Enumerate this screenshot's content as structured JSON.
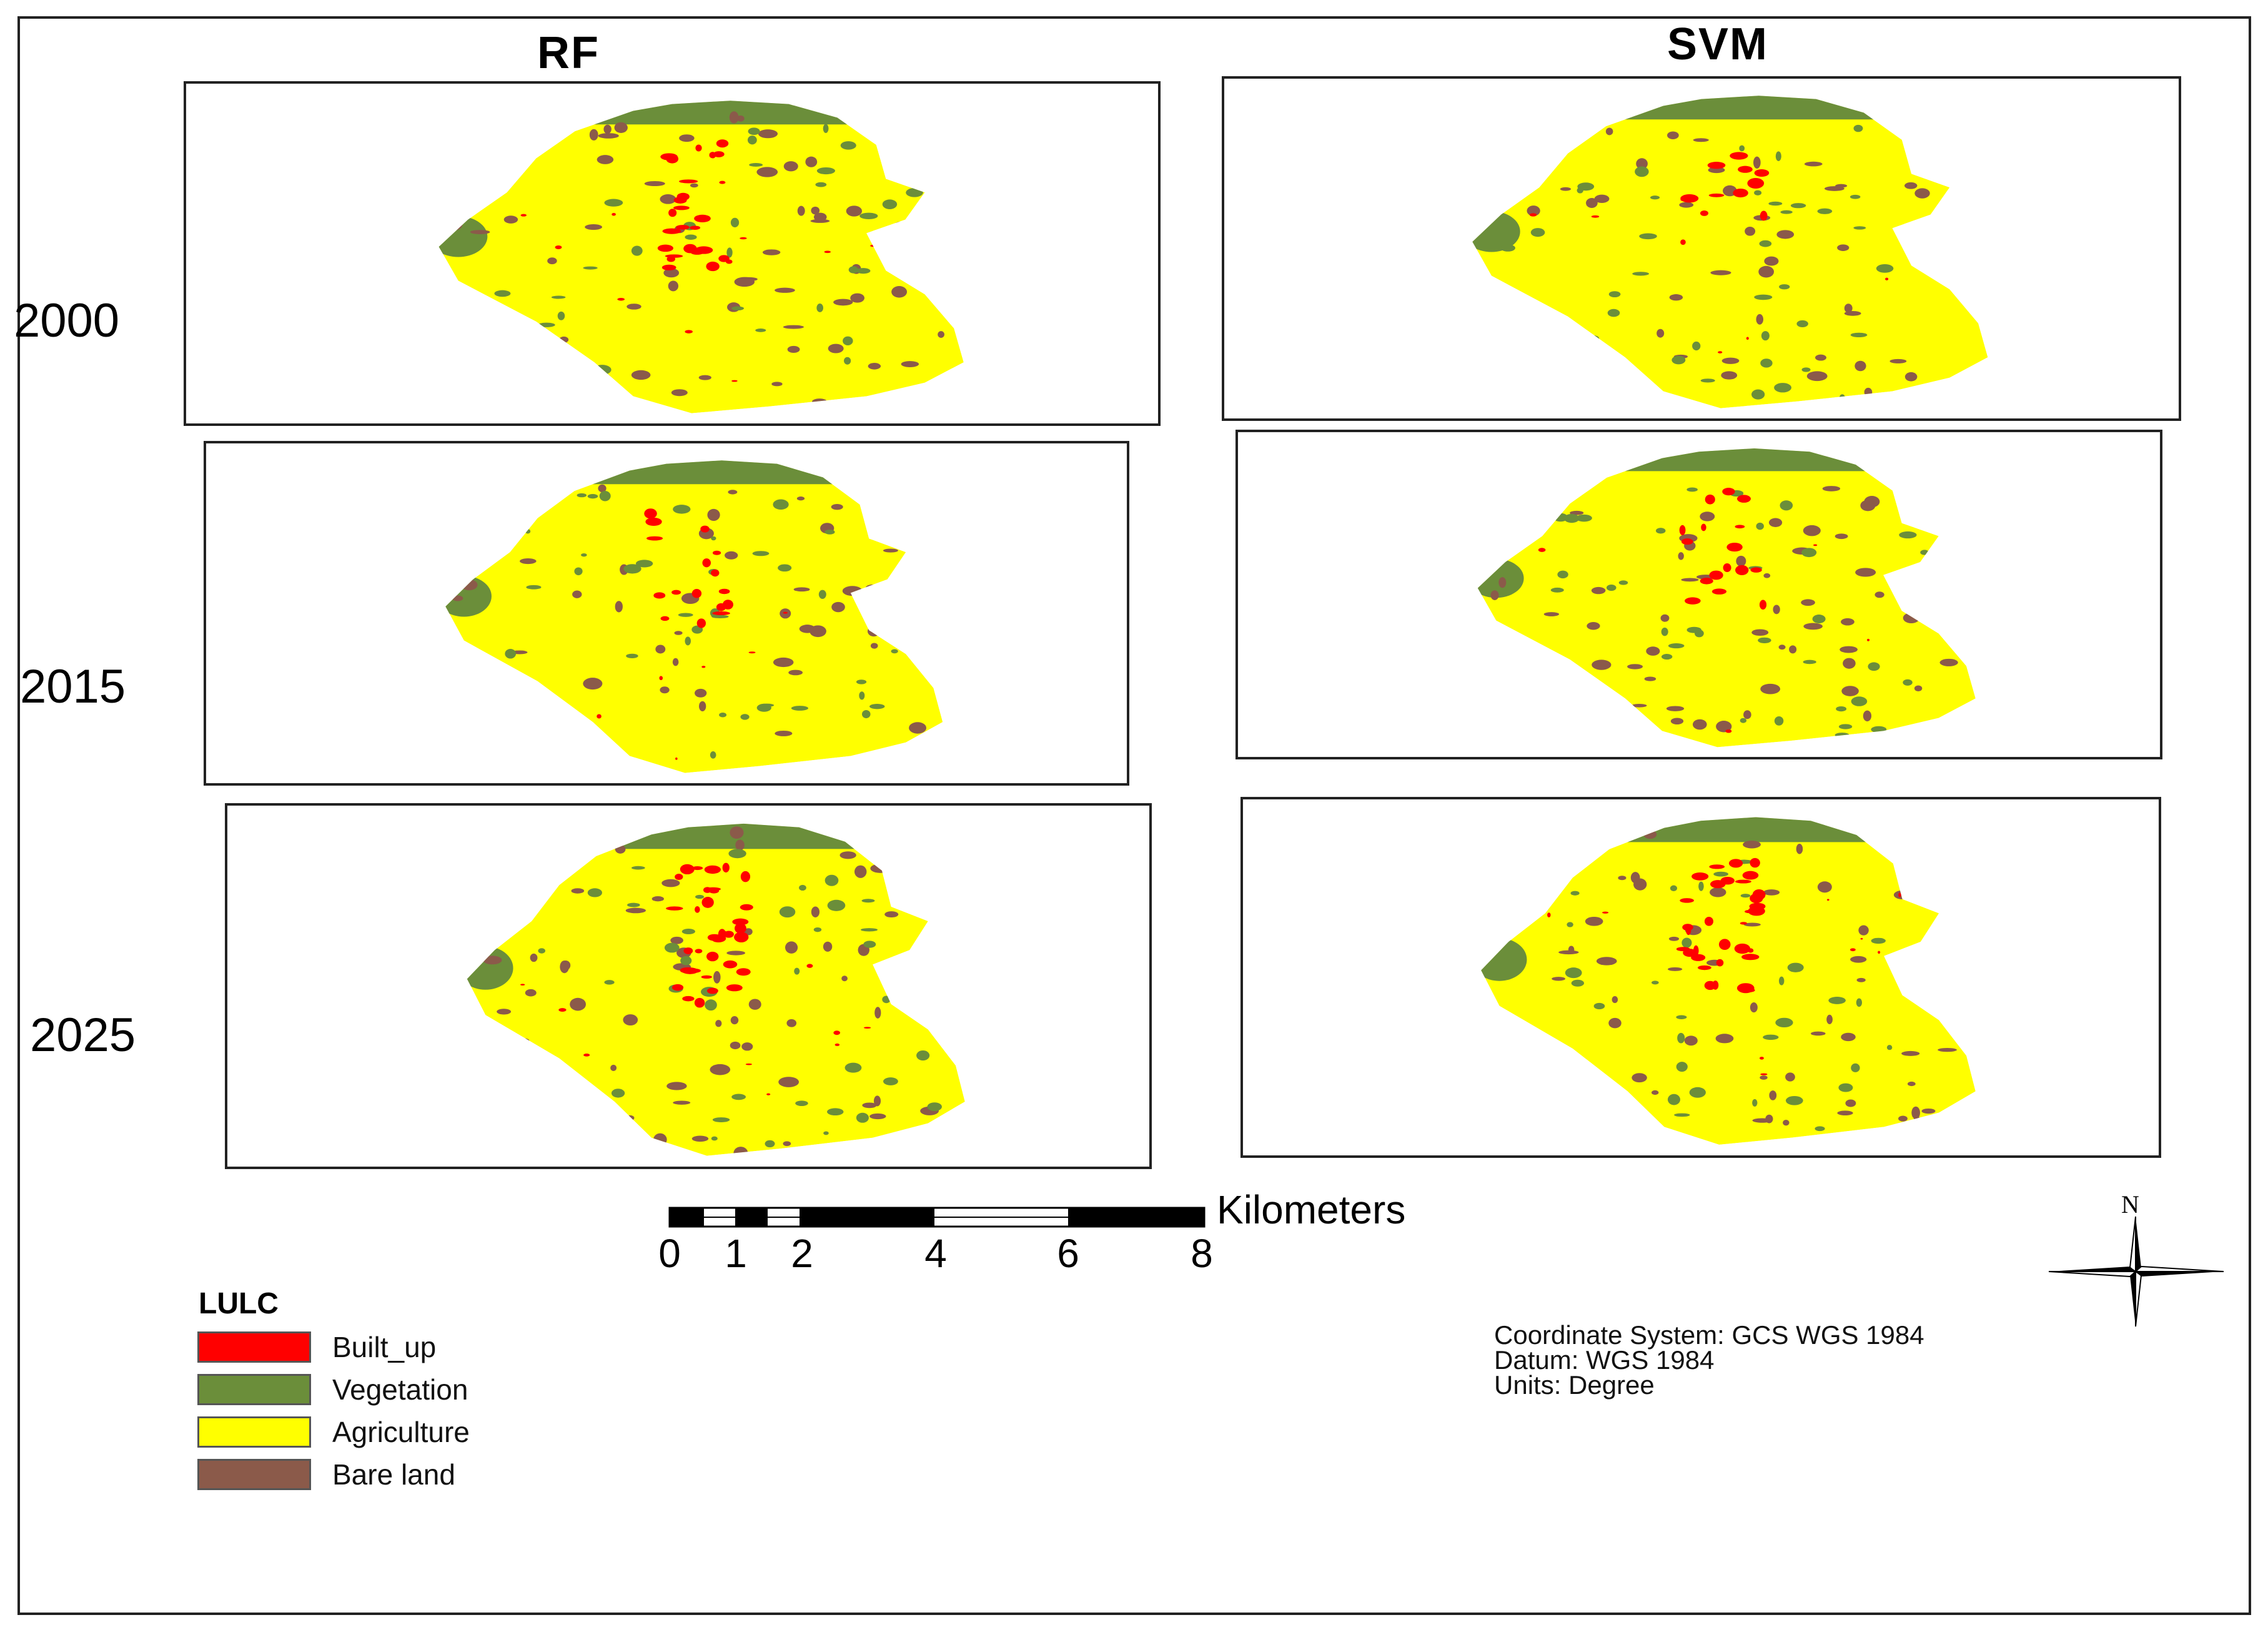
{
  "columns": {
    "rf": "RF",
    "svm": "SVM"
  },
  "rows": [
    "2000",
    "2015",
    "2025"
  ],
  "map_labels": {
    "rf_2000": "RF 2000 map",
    "svm_2000": "SVM 2000 map",
    "rf_2015": "RF 2015 map",
    "svm_2015": "SVM 2015 map",
    "rf_2025": "RF 2025 map",
    "svm_2025": "SVM 2025 map"
  },
  "scale": {
    "unit": "Kilometers",
    "ticks": [
      "0",
      "1",
      "2",
      "4",
      "6",
      "8"
    ]
  },
  "legend": {
    "title": "LULC",
    "items": [
      {
        "label": "Built_up",
        "color": "#ff0000"
      },
      {
        "label": "Vegetation",
        "color": "#6b8e3a"
      },
      {
        "label": "Agriculture",
        "color": "#ffff00"
      },
      {
        "label": "Bare land",
        "color": "#8b5a4a"
      }
    ]
  },
  "coordinate_info": {
    "line1": "Coordinate System: GCS WGS 1984",
    "line2": "Datum: WGS 1984",
    "line3": "Units: Degree"
  },
  "north_arrow": {
    "label": "N",
    "icon": "north-arrow-icon"
  },
  "colors": {
    "built_up": "#ff0000",
    "vegetation": "#6b8e3a",
    "agriculture": "#ffff00",
    "bare_land": "#8b5a4a"
  }
}
